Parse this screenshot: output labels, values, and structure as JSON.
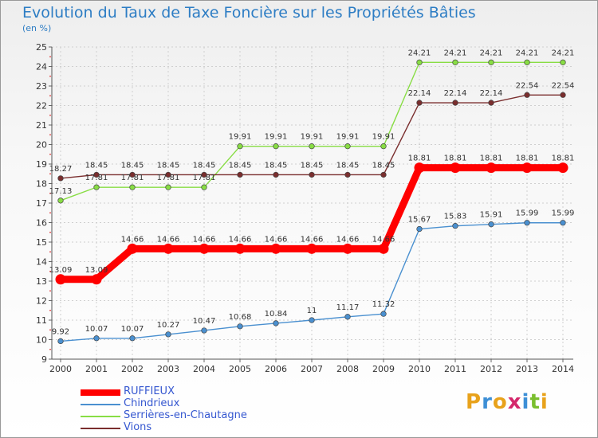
{
  "header": {
    "title": "Evolution du Taux de Taxe Foncière sur les Propriétés Bâties",
    "unit": "(en %)"
  },
  "logo": {
    "text": "Proxiti",
    "letters": [
      "P",
      "r",
      "o",
      "x",
      "i",
      "t",
      "i"
    ],
    "colors": [
      "#e8a21b",
      "#3d8fd6",
      "#e8a21b",
      "#d4286b",
      "#3d8fd6",
      "#7bbf2f",
      "#e8a21b"
    ]
  },
  "chart_data": {
    "type": "line",
    "title": "Evolution du Taux de Taxe Foncière sur les Propriétés Bâties",
    "ylabel": "(en %)",
    "xlabel": "",
    "ylim": [
      9,
      25
    ],
    "yticks": [
      9,
      10,
      11,
      12,
      13,
      14,
      15,
      16,
      17,
      18,
      19,
      20,
      21,
      22,
      23,
      24,
      25
    ],
    "x": [
      "2000",
      "2001",
      "2002",
      "2003",
      "2004",
      "2005",
      "2006",
      "2007",
      "2008",
      "2009",
      "2010",
      "2011",
      "2012",
      "2013",
      "2014"
    ],
    "grid": true,
    "legend_position": "bottom-left",
    "series": [
      {
        "name": "RUFFIEUX",
        "color": "#ff0000",
        "bold": true,
        "values": [
          13.09,
          13.09,
          14.66,
          14.66,
          14.66,
          14.66,
          14.66,
          14.66,
          14.66,
          14.66,
          18.81,
          18.81,
          18.81,
          18.81,
          18.81
        ],
        "labels": [
          "13.09",
          "13.09",
          "14.66",
          "14.66",
          "14.66",
          "14.66",
          "14.66",
          "14.66",
          "14.66",
          "14.66",
          "18.81",
          "18.81",
          "18.81",
          "18.81",
          "18.81"
        ]
      },
      {
        "name": "Chindrieux",
        "color": "#4a90d0",
        "bold": false,
        "values": [
          9.92,
          10.07,
          10.07,
          10.27,
          10.47,
          10.68,
          10.84,
          11,
          11.17,
          11.32,
          15.67,
          15.83,
          15.91,
          15.99,
          15.99
        ],
        "labels": [
          "9.92",
          "10.07",
          "10.07",
          "10.27",
          "10.47",
          "10.68",
          "10.84",
          "11",
          "11.17",
          "11.32",
          "15.67",
          "15.83",
          "15.91",
          "15.99",
          "15.99"
        ]
      },
      {
        "name": "Serrières-en-Chautagne",
        "color": "#88dd44",
        "bold": false,
        "values": [
          17.13,
          17.81,
          17.81,
          17.81,
          17.81,
          19.91,
          19.91,
          19.91,
          19.91,
          19.91,
          24.21,
          24.21,
          24.21,
          24.21,
          24.21
        ],
        "labels": [
          "17.13",
          "17.81",
          "17.81",
          "17.81",
          "17.81",
          "19.91",
          "19.91",
          "19.91",
          "19.91",
          "19.91",
          "24.21",
          "24.21",
          "24.21",
          "24.21",
          "24.21"
        ]
      },
      {
        "name": "Vions",
        "color": "#7a2e2e",
        "bold": false,
        "values": [
          18.27,
          18.45,
          18.45,
          18.45,
          18.45,
          18.45,
          18.45,
          18.45,
          18.45,
          18.45,
          22.14,
          22.14,
          22.14,
          22.54,
          22.54
        ],
        "labels": [
          "18.27",
          "18.45",
          "18.45",
          "18.45",
          "18.45",
          "18.45",
          "18.45",
          "18.45",
          "18.45",
          "18.45",
          "22.14",
          "22.14",
          "22.14",
          "22.54",
          "22.54"
        ]
      }
    ]
  }
}
